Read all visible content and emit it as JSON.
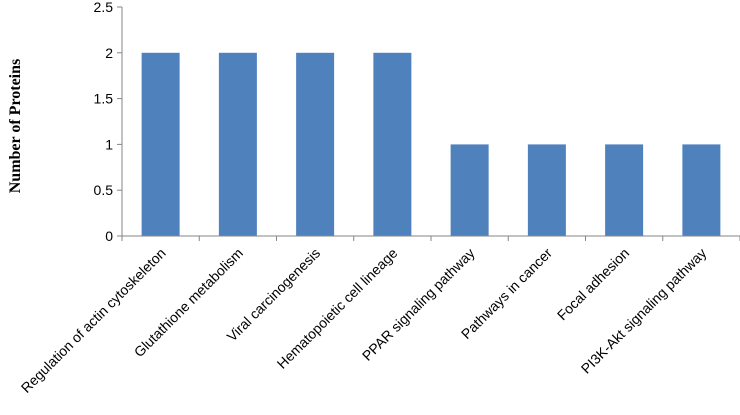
{
  "chart_data": {
    "type": "bar",
    "title": "",
    "xlabel": "",
    "ylabel": "Number of Proteins",
    "ylim": [
      0,
      2.5
    ],
    "yticks": [
      "0",
      "0.5",
      "1",
      "1.5",
      "2",
      "2.5"
    ],
    "grid": false,
    "legend": "none",
    "bar_color": "#4F81BD",
    "categories": [
      "Regulation of actin cytoskeleton",
      "Glutathione metabolism",
      "Viral carcinogenesis",
      "Hematopoietic cell lineage",
      "PPAR signaling pathway",
      "Pathways in cancer",
      "Focal adhesion",
      "PI3K-Akt signaling pathway"
    ],
    "values": [
      2,
      2,
      2,
      2,
      1,
      1,
      1,
      1
    ]
  }
}
